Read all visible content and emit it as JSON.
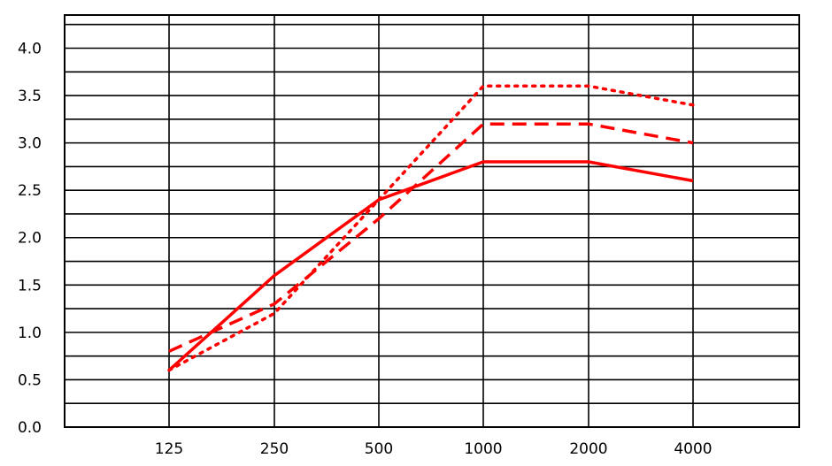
{
  "chart_data": {
    "type": "line",
    "title": "",
    "xlabel": "",
    "ylabel": "",
    "categories": [
      "125",
      "250",
      "500",
      "1000",
      "2000",
      "4000"
    ],
    "y_ticks": [
      "0.0",
      "0.5",
      "1.0",
      "1.5",
      "2.0",
      "2.5",
      "3.0",
      "3.5",
      "4.0"
    ],
    "ylim": [
      0,
      4.35
    ],
    "grid": true,
    "legend": "none",
    "series": [
      {
        "style": "solid",
        "color": "#ff0000",
        "values": [
          0.6,
          1.6,
          2.4,
          2.8,
          2.8,
          2.6
        ]
      },
      {
        "style": "dashed",
        "color": "#ff0000",
        "values": [
          0.8,
          1.3,
          2.2,
          3.2,
          3.2,
          3.0
        ]
      },
      {
        "style": "dotted",
        "color": "#ff0000",
        "values": [
          0.6,
          1.2,
          2.4,
          3.6,
          3.6,
          3.4
        ]
      }
    ]
  }
}
